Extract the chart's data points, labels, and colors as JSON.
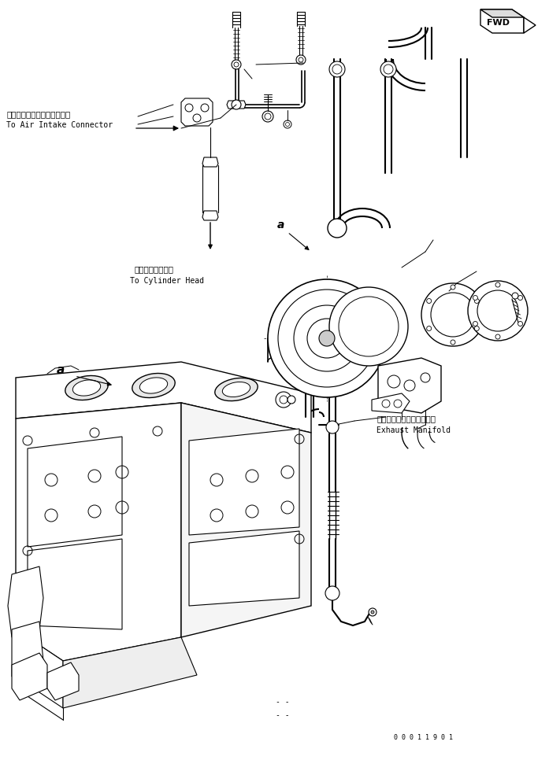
{
  "bg_color": "#ffffff",
  "line_color": "#000000",
  "fig_width": 6.97,
  "fig_height": 9.66,
  "dpi": 100,
  "label_air_intake_jp": "エアーインテークコネクタへ",
  "label_air_intake_en": "To Air Intake Connector",
  "label_cylinder_jp": "シリンダヘッドへ",
  "label_cylinder_en": "To Cylinder Head",
  "label_exhaust_jp": "エキゾーストマニホールド",
  "label_exhaust_en": "Exhaust Manifold",
  "part_number": "0 0 0 1 1 9 0 1",
  "font_size_jp": 7.5,
  "font_size_en": 7.0,
  "font_size_part": 6.0
}
